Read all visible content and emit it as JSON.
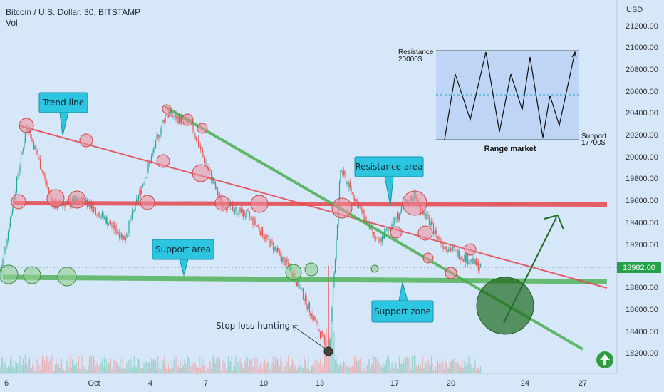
{
  "header": {
    "title": "Bitcoin / U.S. Dollar, 30, BITSTAMP",
    "sub": "Vol"
  },
  "price_axis": {
    "currency": "USD",
    "current_price": "18982.00",
    "ticks": [
      "21200.00",
      "21000.00",
      "20800.00",
      "20600.00",
      "20400.00",
      "20200.00",
      "20000.00",
      "19800.00",
      "19600.00",
      "19400.00",
      "19200.00",
      "18800.00",
      "18600.00",
      "18400.00",
      "18200.00"
    ]
  },
  "time_axis": {
    "ticks": [
      "6",
      "Oct",
      "4",
      "7",
      "10",
      "13",
      "17",
      "20",
      "24",
      "27"
    ]
  },
  "annotations": {
    "trend_line": "Trend line",
    "resistance_area": "Resistance area",
    "support_area": "Support area",
    "support_zone": "Support zone",
    "stop_loss": "Stop loss hunting"
  },
  "inset": {
    "resistance_label": "Resistance",
    "resistance_value": "20000$",
    "support_label": "Support",
    "support_value": "17700$",
    "caption": "Range market"
  },
  "colors": {
    "background": "#d7e7fa",
    "resistance": "#e8454b",
    "support": "#4caf50",
    "callout": "#2dc6e0",
    "up_icon": "#2e9e3e"
  },
  "chart_data": {
    "type": "candlestick",
    "title": "Bitcoin / U.S. Dollar, 30, BITSTAMP",
    "ylabel": "USD",
    "ylim": [
      18050,
      21350
    ],
    "resistance_level": 19560,
    "support_level": 18860,
    "current_price": 18982,
    "key_points": [
      {
        "label": "start",
        "x": "6",
        "y": 18900
      },
      {
        "label": "high_1",
        "x": "7",
        "y": 20330
      },
      {
        "label": "high_2",
        "x": "4",
        "y": 20420
      },
      {
        "label": "low_stop_loss",
        "x": "13",
        "y": 18200
      },
      {
        "label": "mid_high",
        "x": "13",
        "y": 19880
      },
      {
        "label": "peak_resistance",
        "x": "17",
        "y": 19650
      },
      {
        "label": "end",
        "x": "20",
        "y": 18982
      }
    ]
  }
}
